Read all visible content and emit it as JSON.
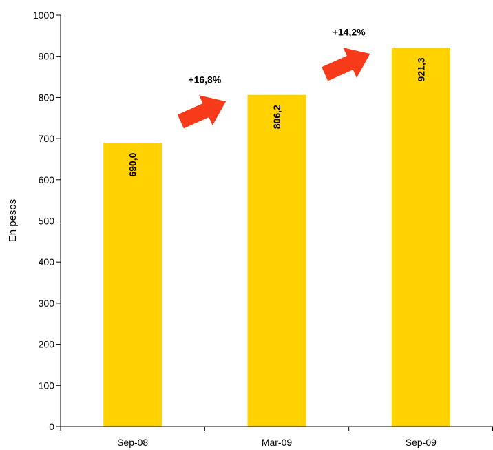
{
  "chart_data": {
    "type": "bar",
    "title": "",
    "xlabel": "",
    "ylabel": "En pesos",
    "ylim": [
      0,
      1000
    ],
    "yticks": [
      0,
      100,
      200,
      300,
      400,
      500,
      600,
      700,
      800,
      900,
      1000
    ],
    "categories": [
      "Sep-08",
      "Mar-09",
      "Sep-09"
    ],
    "values": [
      690.0,
      806.2,
      921.3
    ],
    "value_labels": [
      "690,0",
      "806,2",
      "921,3"
    ],
    "bar_color": "#FFD200",
    "grid": false,
    "annotations": [
      {
        "text": "+16,8%",
        "from": "Sep-08",
        "to": "Mar-09"
      },
      {
        "text": "+14,2%",
        "from": "Mar-09",
        "to": "Sep-09"
      }
    ],
    "arrow_color": "#F63A1A"
  }
}
